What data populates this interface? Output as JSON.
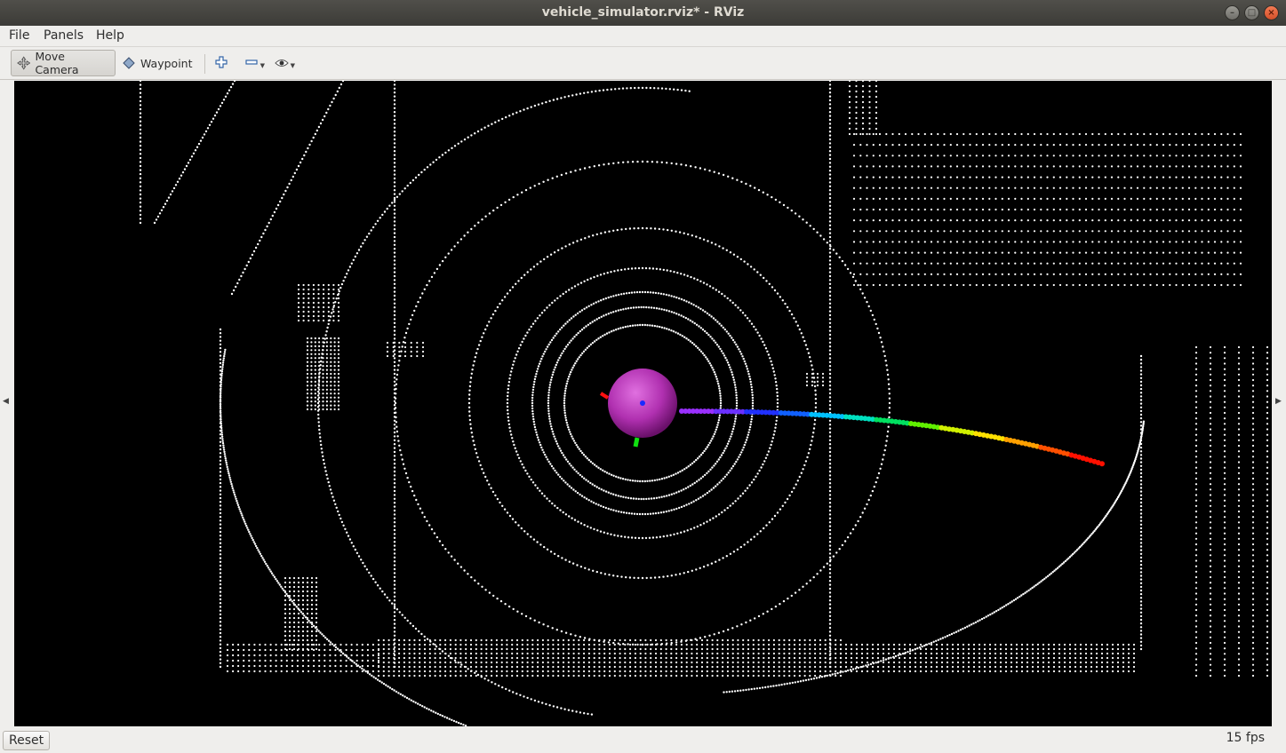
{
  "window": {
    "title": "vehicle_simulator.rviz* - RViz",
    "minimize_glyph": "–",
    "maximize_glyph": "□",
    "close_glyph": "×"
  },
  "menu": {
    "file": "File",
    "panels": "Panels",
    "help": "Help"
  },
  "toolbar": {
    "move_camera": "Move Camera",
    "waypoint": "Waypoint",
    "add_icon": "plus-icon",
    "remove_icon": "minus-icon",
    "view_icon": "eye-icon"
  },
  "scene": {
    "background_color": "#000000",
    "point_color": "#ffffff",
    "vehicle_color": "#c040c0",
    "path_gradient": [
      "purple",
      "blue",
      "cyan",
      "green",
      "yellow",
      "orange",
      "red"
    ]
  },
  "status": {
    "reset_label": "Reset",
    "fps": "15 fps"
  }
}
